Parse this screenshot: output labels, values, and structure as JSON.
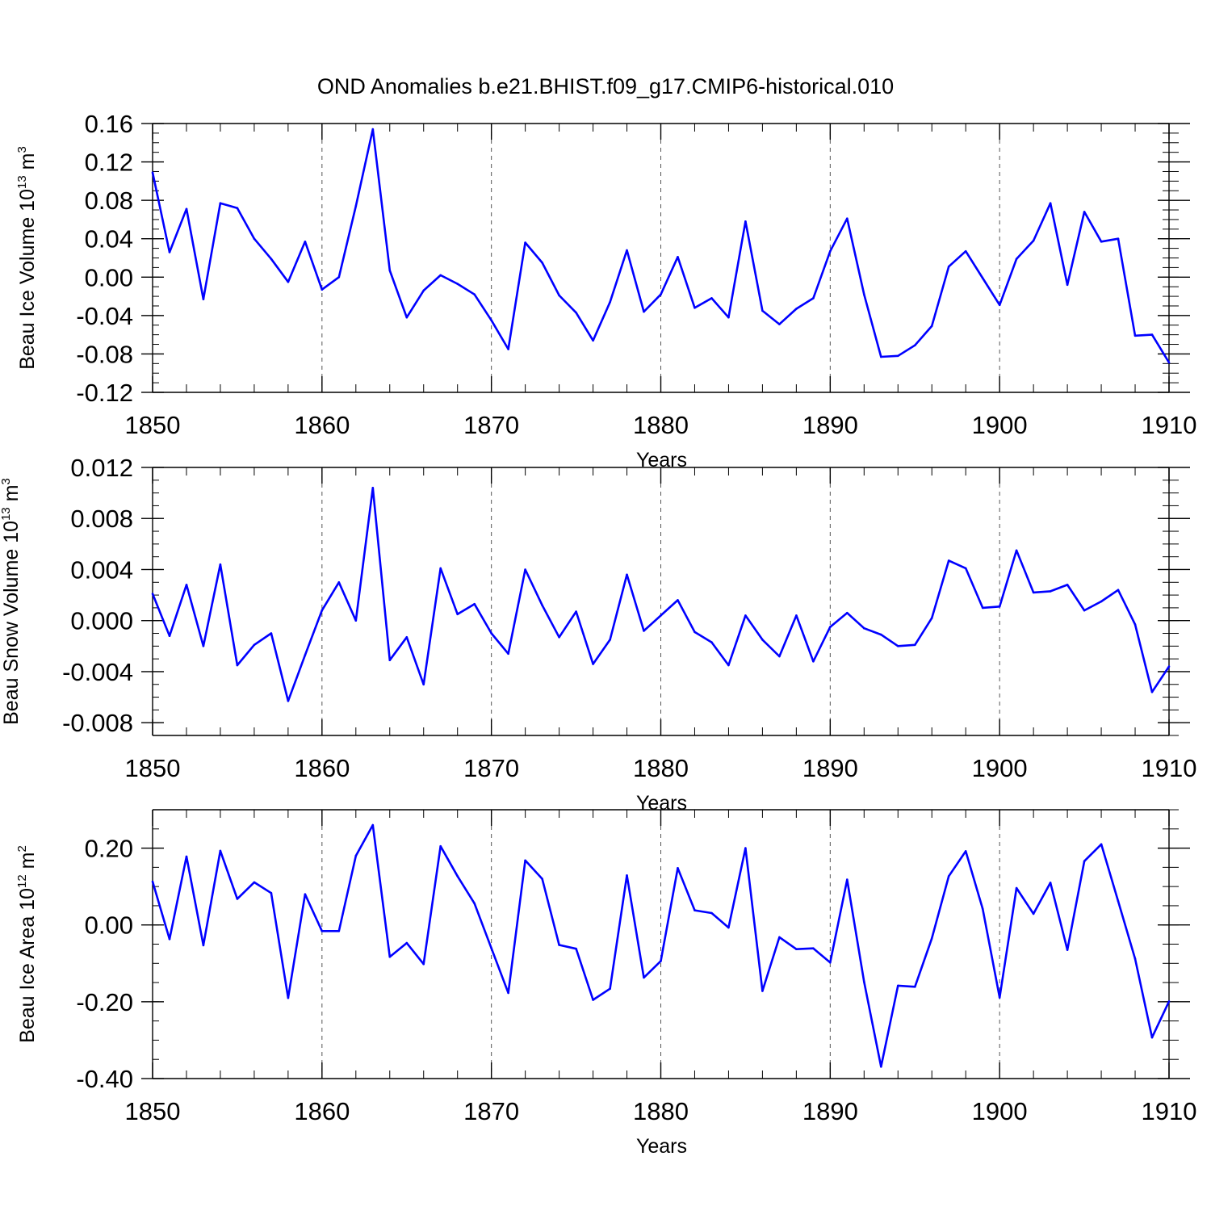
{
  "title": "OND Anomalies b.e21.BHIST.f09_g17.CMIP6-historical.010",
  "line_color": "#0000ff",
  "chart_data": [
    {
      "type": "line",
      "id": "ice-volume",
      "ylabel_main": "Beau Ice Volume 10",
      "ylabel_exp": "13",
      "ylabel_unit": " m",
      "ylabel_unit_exp": "3",
      "xlabel": "Years",
      "xlim": [
        1850,
        1910
      ],
      "ylim": [
        -0.12,
        0.16
      ],
      "x_ticks": [
        "1850",
        "1860",
        "1870",
        "1880",
        "1890",
        "1900",
        "1910"
      ],
      "y_ticks": [
        "0.16",
        "0.12",
        "0.08",
        "0.04",
        "0.00",
        "-0.04",
        "-0.08",
        "-0.12"
      ],
      "y_tick_values": [
        0.16,
        0.12,
        0.08,
        0.04,
        0.0,
        -0.04,
        -0.08,
        -0.12
      ],
      "x_start": 1850,
      "values": [
        0.109,
        0.026,
        0.071,
        -0.023,
        0.077,
        0.072,
        0.04,
        0.019,
        -0.005,
        0.037,
        -0.013,
        0.0,
        0.074,
        0.154,
        0.007,
        -0.042,
        -0.014,
        0.002,
        -0.007,
        -0.018,
        -0.045,
        -0.075,
        0.036,
        0.015,
        -0.019,
        -0.037,
        -0.066,
        -0.026,
        0.028,
        -0.036,
        -0.018,
        0.021,
        -0.032,
        -0.022,
        -0.042,
        0.058,
        -0.035,
        -0.049,
        -0.033,
        -0.022,
        0.027,
        0.061,
        -0.018,
        -0.083,
        -0.082,
        -0.071,
        -0.051,
        0.011,
        0.027,
        -0.001,
        -0.029,
        0.019,
        0.038,
        0.077,
        -0.008,
        0.068,
        0.037,
        0.04,
        -0.061,
        -0.06,
        -0.089
      ]
    },
    {
      "type": "line",
      "id": "snow-volume",
      "ylabel_main": "Beau Snow Volume 10",
      "ylabel_exp": "13",
      "ylabel_unit": " m",
      "ylabel_unit_exp": "3",
      "xlabel": "Years",
      "xlim": [
        1850,
        1910
      ],
      "ylim": [
        -0.009,
        0.012
      ],
      "x_ticks": [
        "1850",
        "1860",
        "1870",
        "1880",
        "1890",
        "1900",
        "1910"
      ],
      "y_ticks": [
        "0.012",
        "0.008",
        "0.004",
        "0.000",
        "-0.004",
        "-0.008"
      ],
      "y_tick_values": [
        0.012,
        0.008,
        0.004,
        0.0,
        -0.004,
        -0.008
      ],
      "x_start": 1850,
      "values": [
        0.0021,
        -0.0012,
        0.0028,
        -0.002,
        0.0044,
        -0.0035,
        -0.0019,
        -0.001,
        -0.0063,
        -0.0027,
        0.0008,
        0.003,
        0.0,
        0.0104,
        -0.0031,
        -0.0013,
        -0.005,
        0.0041,
        0.0005,
        0.0013,
        -0.001,
        -0.0026,
        0.004,
        0.0012,
        -0.0013,
        0.0007,
        -0.0034,
        -0.0015,
        0.0036,
        -0.0008,
        0.0004,
        0.0016,
        -0.0009,
        -0.0017,
        -0.0035,
        0.0004,
        -0.0015,
        -0.0028,
        0.0004,
        -0.0032,
        -0.0005,
        0.0006,
        -0.0006,
        -0.0011,
        -0.002,
        -0.0019,
        0.0002,
        0.0047,
        0.0041,
        0.001,
        0.0011,
        0.0055,
        0.0022,
        0.0023,
        0.0028,
        0.0008,
        0.0015,
        0.0024,
        -0.0003,
        -0.0056,
        -0.0036
      ]
    },
    {
      "type": "line",
      "id": "ice-area",
      "ylabel_main": "Beau Ice Area 10",
      "ylabel_exp": "12",
      "ylabel_unit": " m",
      "ylabel_unit_exp": "2",
      "xlabel": "Years",
      "xlim": [
        1850,
        1910
      ],
      "ylim": [
        -0.4,
        0.3
      ],
      "x_ticks": [
        "1850",
        "1860",
        "1870",
        "1880",
        "1890",
        "1900",
        "1910"
      ],
      "y_ticks": [
        "0.20",
        "0.00",
        "-0.20",
        "-0.40"
      ],
      "y_tick_values": [
        0.2,
        0.0,
        -0.2,
        -0.4
      ],
      "x_start": 1850,
      "values": [
        0.113,
        -0.037,
        0.178,
        -0.053,
        0.193,
        0.068,
        0.111,
        0.083,
        -0.19,
        0.08,
        -0.016,
        -0.016,
        0.18,
        0.26,
        -0.083,
        -0.047,
        -0.102,
        0.205,
        0.127,
        0.056,
        -0.061,
        -0.177,
        0.168,
        0.12,
        -0.052,
        -0.062,
        -0.195,
        -0.166,
        0.129,
        -0.137,
        -0.094,
        0.148,
        0.038,
        0.031,
        -0.007,
        0.2,
        -0.172,
        -0.032,
        -0.063,
        -0.061,
        -0.098,
        0.118,
        -0.148,
        -0.369,
        -0.158,
        -0.161,
        -0.035,
        0.127,
        0.192,
        0.042,
        -0.189,
        0.096,
        0.029,
        0.11,
        -0.065,
        0.166,
        0.21,
        0.062,
        -0.088,
        -0.293,
        -0.199
      ]
    }
  ]
}
